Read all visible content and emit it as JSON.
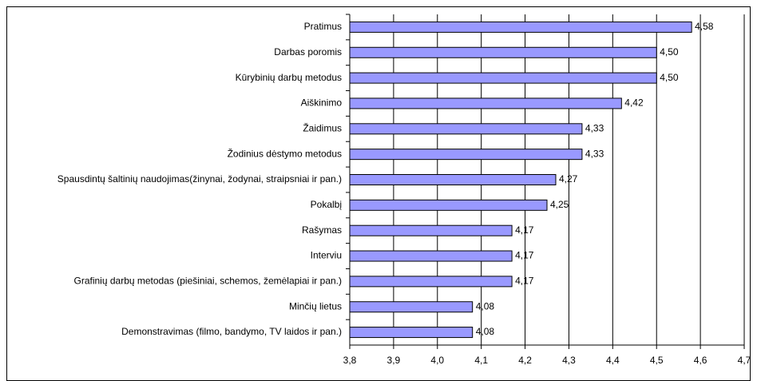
{
  "chart_data": {
    "type": "bar",
    "orientation": "horizontal",
    "categories": [
      "Pratimus",
      "Darbas poromis",
      "Kūrybinių darbų metodus",
      "Aiškinimo",
      "Žaidimus",
      "Žodinius dėstymo metodus",
      "Spausdintų šaltinių naudojimas(žinynai, žodynai, straipsniai ir pan.)",
      "Pokalbį",
      "Rašymas",
      "Interviu",
      "Grafinių darbų metodas (piešiniai, schemos, žemėlapiai ir pan.)",
      "Minčių lietus",
      "Demonstravimas (filmo, bandymo, TV laidos ir pan.)"
    ],
    "values": [
      4.58,
      4.5,
      4.5,
      4.42,
      4.33,
      4.33,
      4.27,
      4.25,
      4.17,
      4.17,
      4.17,
      4.08,
      4.08
    ],
    "value_labels": [
      "4,58",
      "4,50",
      "4,50",
      "4,42",
      "4,33",
      "4,33",
      "4,27",
      "4,25",
      "4,17",
      "4,17",
      "4,17",
      "4,08",
      "4,08"
    ],
    "color": "#9999ff",
    "xlim": [
      3.8,
      4.7
    ],
    "xticks": [
      {
        "value": 3.8,
        "label": "3,8"
      },
      {
        "value": 3.9,
        "label": "3,9"
      },
      {
        "value": 4.0,
        "label": "4,0"
      },
      {
        "value": 4.1,
        "label": "4,1"
      },
      {
        "value": 4.2,
        "label": "4,2"
      },
      {
        "value": 4.3,
        "label": "4,3"
      },
      {
        "value": 4.4,
        "label": "4,4"
      },
      {
        "value": 4.5,
        "label": "4,5"
      },
      {
        "value": 4.6,
        "label": "4,6"
      },
      {
        "value": 4.7,
        "label": "4,7"
      }
    ],
    "grid": true
  }
}
